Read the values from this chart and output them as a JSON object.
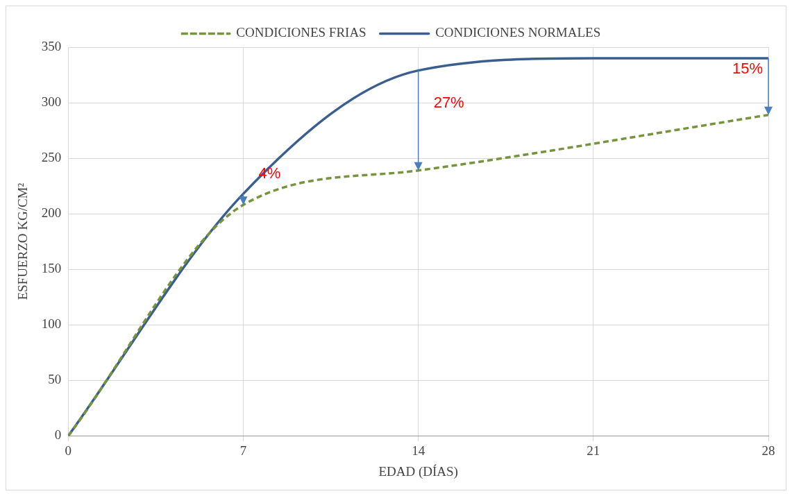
{
  "chart_data": {
    "type": "line",
    "xlabel": "EDAD (DÍAS)",
    "ylabel": "ESFUERZO KG/CM²",
    "xlim": [
      0,
      28
    ],
    "xticks": [
      0,
      7,
      14,
      21,
      28
    ],
    "ylim": [
      0,
      350
    ],
    "yticks": [
      0,
      50,
      100,
      150,
      200,
      250,
      300,
      350
    ],
    "grid": true,
    "legend": "top",
    "marker": "none",
    "series": [
      {
        "name": "CONDICIONES FRIAS",
        "color": "#77933c",
        "line_style": "dashed",
        "x": [
          0,
          7,
          14,
          28
        ],
        "values": [
          0,
          208,
          239,
          289
        ]
      },
      {
        "name": "CONDICIONES NORMALES",
        "color": "#3a5f8f",
        "line_style": "solid",
        "x": [
          0,
          7,
          14,
          21,
          28
        ],
        "values": [
          0,
          218,
          329,
          340,
          340
        ]
      }
    ],
    "annotations": [
      {
        "text": "4%",
        "x": 7,
        "y": 218
      },
      {
        "text": "27%",
        "x": 14,
        "y": 329
      },
      {
        "text": "15%",
        "x": 28,
        "y": 340
      }
    ]
  }
}
